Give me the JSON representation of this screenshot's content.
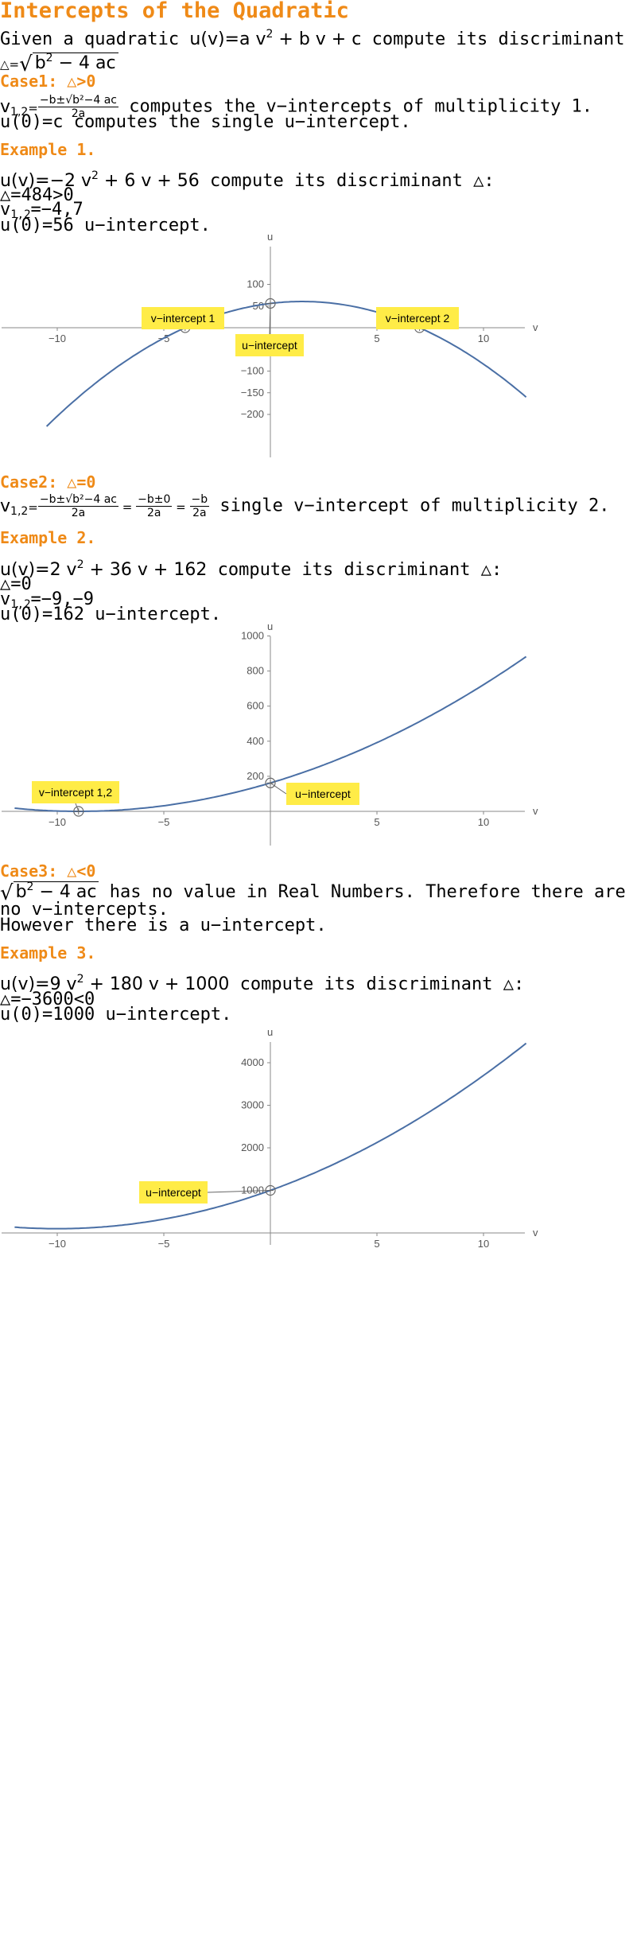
{
  "title": "Intercepts of the Quadratic",
  "intro": {
    "given": "Given a quadratic ",
    "func": "u(v)=a v",
    "func_rest": " + b v + c",
    "compute": " compute its discriminant △:",
    "disc_lhs": "△=",
    "disc_rad": "b",
    "disc_rad_rest": " − 4 ac"
  },
  "case1": {
    "heading": "Case1: △>0",
    "formula_lhs": "v",
    "formula_sub": "1,2",
    "formula_eq": "=",
    "frac_num": "−b±√b²−4 ac",
    "frac_den": "2a",
    "formula_text": " computes the v−intercepts of multiplicity 1.",
    "u_text": "u(0)=c computes the single u−intercept."
  },
  "example1": {
    "heading": "Example 1.",
    "eq": "u(v)=−2 v",
    "eq_rest": " + 6 v + 56",
    "eq_tail": " compute its discriminant △:",
    "disc": "△=484>0",
    "roots_lhs": "v",
    "roots_sub": "1,2",
    "roots": "=−4,7",
    "u": "u(0)=56 u−intercept.",
    "callouts": [
      "v−intercept 1",
      "v−intercept 2",
      "u−intercept"
    ]
  },
  "case2": {
    "heading": "Case2: △=0",
    "formula_lhs": "v",
    "formula_sub": "1,2",
    "frac1_num": "−b±√b²−4 ac",
    "frac1_den": "2a",
    "frac2_num": "−b±0",
    "frac2_den": "2a",
    "frac3_num": "−b",
    "frac3_den": "2a",
    "formula_text": " single v−intercept of multiplicity 2."
  },
  "example2": {
    "heading": "Example 2.",
    "eq": "u(v)=2 v",
    "eq_rest": " + 36 v + 162",
    "eq_tail": " compute its discriminant △:",
    "disc": "△=0",
    "roots_lhs": "v",
    "roots_sub": "1,2",
    "roots": "=−9,−9",
    "u": "u(0)=162 u−intercept.",
    "callouts": [
      "v−intercept 1,2",
      "u−intercept"
    ]
  },
  "case3": {
    "heading": "Case3: △<0",
    "rad": "b",
    "rad_rest": " − 4 ac",
    "text1": " has no value in Real Numbers. Therefore there are",
    "text2": "no v−intercepts.",
    "text3": "However there is a u−intercept."
  },
  "example3": {
    "heading": "Example 3.",
    "eq": "u(v)=9 v",
    "eq_rest": " + 180 v + 1000",
    "eq_tail": " compute its discriminant △:",
    "disc": "△=−3600<0",
    "u": "u(0)=1000 u−intercept.",
    "callouts": [
      "u−intercept"
    ]
  },
  "sq": "2",
  "chart_data": [
    {
      "type": "line",
      "function": "u(v) = -2v^2 + 6v + 56",
      "xlabel": "v",
      "ylabel": "u",
      "xlim": [
        -12,
        12
      ],
      "ylim": [
        -220,
        140
      ],
      "xticks": [
        -10,
        -5,
        5,
        10
      ],
      "yticks": [
        -200,
        -150,
        -100,
        -50,
        50,
        100
      ],
      "x": [
        -10.5,
        -8,
        -6,
        -4,
        -2,
        0,
        1.5,
        3,
        5,
        7,
        9,
        12
      ],
      "y": [
        -227.5,
        -120,
        -52,
        0,
        36,
        56,
        60.5,
        56,
        36,
        0,
        -52,
        -160
      ],
      "points": [
        [
          -4,
          0
        ],
        [
          7,
          0
        ],
        [
          0,
          56
        ]
      ],
      "annotations": [
        "v−intercept 1",
        "v−intercept 2",
        "u−intercept"
      ]
    },
    {
      "type": "line",
      "function": "u(v) = 2v^2 + 36v + 162",
      "xlabel": "v",
      "ylabel": "u",
      "xlim": [
        -12,
        12
      ],
      "ylim": [
        -200,
        1050
      ],
      "xticks": [
        -10,
        -5,
        5,
        10
      ],
      "yticks": [
        200,
        400,
        600,
        800,
        1000
      ],
      "x": [
        -12,
        -9,
        -6,
        -3,
        0,
        3,
        6,
        9,
        12
      ],
      "y": [
        18,
        0,
        18,
        72,
        162,
        288,
        450,
        648,
        882
      ],
      "points": [
        [
          -9,
          0
        ],
        [
          0,
          162
        ]
      ],
      "annotations": [
        "v−intercept 1,2",
        "u−intercept"
      ]
    },
    {
      "type": "line",
      "function": "u(v) = 9v^2 + 180v + 1000",
      "xlabel": "v",
      "ylabel": "u",
      "xlim": [
        -12,
        12
      ],
      "ylim": [
        0,
        4700
      ],
      "xticks": [
        -10,
        -5,
        5,
        10
      ],
      "yticks": [
        1000,
        2000,
        3000,
        4000
      ],
      "x": [
        -12,
        -10,
        -6,
        -3,
        0,
        3,
        6,
        9,
        12
      ],
      "y": [
        136,
        100,
        244,
        541,
        1000,
        1621,
        2404,
        3349,
        4456
      ],
      "points": [
        [
          0,
          1000
        ]
      ],
      "annotations": [
        "u−intercept"
      ]
    }
  ]
}
